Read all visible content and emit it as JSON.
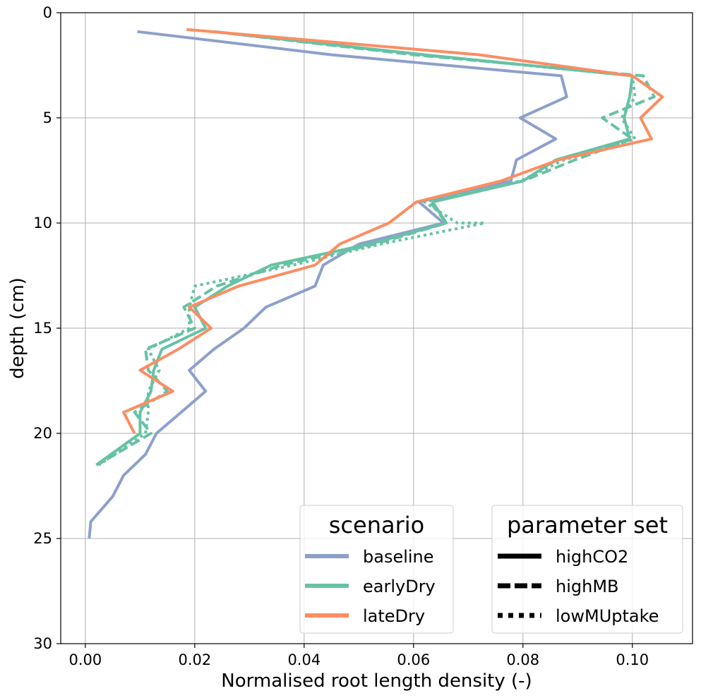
{
  "chart_data": {
    "type": "line",
    "xlabel": "Normalised root length density (-)",
    "ylabel": "depth (cm)",
    "xlim": [
      -0.0045,
      0.111
    ],
    "ylim": [
      30,
      0
    ],
    "y_inverted": true,
    "xticks": [
      0.0,
      0.02,
      0.04,
      0.06,
      0.08,
      0.1
    ],
    "xtick_labels": [
      "0.00",
      "0.02",
      "0.04",
      "0.06",
      "0.08",
      "0.10"
    ],
    "yticks": [
      0,
      5,
      10,
      15,
      20,
      25,
      30
    ],
    "ytick_labels": [
      "0",
      "5",
      "10",
      "15",
      "20",
      "25",
      "30"
    ],
    "grid": true,
    "colors": {
      "baseline": "#8da0cb",
      "earlyDry": "#66c2a5",
      "lateDry": "#fc8d62"
    },
    "legends": [
      {
        "title": "scenario",
        "placement": "lower-center-right",
        "items": [
          {
            "label": "baseline",
            "color": "#8da0cb",
            "style": "solid"
          },
          {
            "label": "earlyDry",
            "color": "#66c2a5",
            "style": "solid"
          },
          {
            "label": "lateDry",
            "color": "#fc8d62",
            "style": "solid"
          }
        ]
      },
      {
        "title": "parameter set",
        "placement": "lower-right",
        "items": [
          {
            "label": "highCO2",
            "color": "#000000",
            "style": "solid"
          },
          {
            "label": "highMB",
            "color": "#000000",
            "style": "dashed"
          },
          {
            "label": "lowMUptake",
            "color": "#000000",
            "style": "dotted"
          }
        ]
      }
    ],
    "series": [
      {
        "name": "baseline",
        "scenario": "baseline",
        "parameter_set": "highCO2",
        "color": "#8da0cb",
        "style": "solid",
        "points": [
          [
            0.0095,
            0.9
          ],
          [
            0.045,
            2
          ],
          [
            0.087,
            3
          ],
          [
            0.088,
            4
          ],
          [
            0.0795,
            5
          ],
          [
            0.086,
            6
          ],
          [
            0.0788,
            7
          ],
          [
            0.0778,
            8
          ],
          [
            0.061,
            9
          ],
          [
            0.0655,
            10
          ],
          [
            0.05,
            11
          ],
          [
            0.0435,
            12
          ],
          [
            0.042,
            13
          ],
          [
            0.033,
            14
          ],
          [
            0.029,
            15
          ],
          [
            0.0235,
            16
          ],
          [
            0.019,
            17
          ],
          [
            0.022,
            18
          ],
          [
            0.0175,
            19
          ],
          [
            0.013,
            20
          ],
          [
            0.011,
            21
          ],
          [
            0.007,
            22
          ],
          [
            0.005,
            23
          ],
          [
            0.001,
            24.2
          ],
          [
            0.0007,
            25
          ]
        ]
      },
      {
        "name": "earlyDry",
        "scenario": "earlyDry",
        "parameter_set": "highCO2",
        "color": "#66c2a5",
        "style": "solid",
        "points": [
          [
            0.0235,
            0.9
          ],
          [
            0.062,
            2
          ],
          [
            0.1,
            3
          ],
          [
            0.0995,
            4
          ],
          [
            0.0985,
            5
          ],
          [
            0.0995,
            6
          ],
          [
            0.086,
            7
          ],
          [
            0.08,
            8
          ],
          [
            0.0635,
            9
          ],
          [
            0.066,
            10
          ],
          [
            0.052,
            11
          ],
          [
            0.034,
            12
          ],
          [
            0.026,
            13
          ],
          [
            0.02,
            14
          ],
          [
            0.022,
            15
          ],
          [
            0.014,
            16
          ],
          [
            0.0125,
            17
          ],
          [
            0.012,
            18
          ],
          [
            0.01,
            19
          ],
          [
            0.01,
            20
          ],
          [
            0.002,
            21.5
          ]
        ]
      },
      {
        "name": "earlyDry",
        "scenario": "earlyDry",
        "parameter_set": "highMB",
        "color": "#66c2a5",
        "style": "dashed",
        "points": [
          [
            0.0235,
            0.9
          ],
          [
            0.06,
            2
          ],
          [
            0.102,
            3
          ],
          [
            0.104,
            4
          ],
          [
            0.0945,
            5
          ],
          [
            0.1,
            6
          ],
          [
            0.0895,
            7
          ],
          [
            0.08,
            8
          ],
          [
            0.063,
            9
          ],
          [
            0.066,
            10
          ],
          [
            0.053,
            11
          ],
          [
            0.036,
            12
          ],
          [
            0.024,
            13
          ],
          [
            0.018,
            14
          ],
          [
            0.02,
            15
          ],
          [
            0.011,
            16
          ],
          [
            0.0115,
            17
          ],
          [
            0.015,
            18
          ],
          [
            0.009,
            19
          ],
          [
            0.012,
            20
          ],
          [
            0.0022,
            21.5
          ]
        ]
      },
      {
        "name": "earlyDry",
        "scenario": "earlyDry",
        "parameter_set": "lowMUptake",
        "color": "#66c2a5",
        "style": "dotted",
        "points": [
          [
            0.0235,
            0.9
          ],
          [
            0.061,
            2
          ],
          [
            0.1,
            3
          ],
          [
            0.1005,
            4
          ],
          [
            0.098,
            5
          ],
          [
            0.1005,
            6
          ],
          [
            0.0875,
            7
          ],
          [
            0.0795,
            8
          ],
          [
            0.062,
            9
          ],
          [
            0.068,
            10
          ],
          [
            0.073,
            10
          ],
          [
            0.054,
            11
          ],
          [
            0.038,
            12
          ],
          [
            0.02,
            13
          ],
          [
            0.019,
            14
          ],
          [
            0.019,
            15
          ],
          [
            0.0115,
            16
          ],
          [
            0.0135,
            17
          ],
          [
            0.0115,
            18
          ],
          [
            0.0115,
            19
          ],
          [
            0.011,
            20
          ],
          [
            0.0025,
            21.5
          ]
        ]
      },
      {
        "name": "lateDry",
        "scenario": "lateDry",
        "parameter_set": "highCO2",
        "color": "#fc8d62",
        "style": "solid",
        "points": [
          [
            0.0185,
            0.8
          ],
          [
            0.072,
            2
          ],
          [
            0.1,
            3
          ],
          [
            0.1055,
            4
          ],
          [
            0.1015,
            5
          ],
          [
            0.1035,
            6
          ],
          [
            0.0865,
            7
          ],
          [
            0.076,
            8
          ],
          [
            0.0605,
            9
          ],
          [
            0.0555,
            10
          ],
          [
            0.0465,
            11
          ],
          [
            0.042,
            12
          ],
          [
            0.028,
            13
          ],
          [
            0.019,
            14
          ],
          [
            0.023,
            15
          ],
          [
            0.017,
            16
          ],
          [
            0.01,
            17
          ],
          [
            0.016,
            18
          ],
          [
            0.007,
            19
          ],
          [
            0.009,
            20
          ]
        ]
      }
    ]
  }
}
